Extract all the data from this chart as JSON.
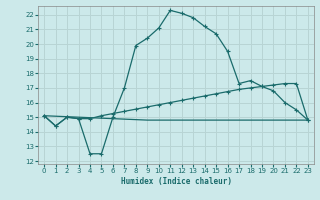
{
  "xlabel": "Humidex (Indice chaleur)",
  "xlim": [
    -0.5,
    23.5
  ],
  "ylim": [
    11.8,
    22.6
  ],
  "xticks": [
    0,
    1,
    2,
    3,
    4,
    5,
    6,
    7,
    8,
    9,
    10,
    11,
    12,
    13,
    14,
    15,
    16,
    17,
    18,
    19,
    20,
    21,
    22,
    23
  ],
  "yticks": [
    12,
    13,
    14,
    15,
    16,
    17,
    18,
    19,
    20,
    21,
    22
  ],
  "bg_color": "#cce9ea",
  "grid_color": "#b8d4d4",
  "line_color": "#1a6b6b",
  "line1_x": [
    0,
    1,
    2,
    3,
    4,
    5,
    6,
    7,
    8,
    9,
    10,
    11,
    12,
    13,
    14,
    15,
    16,
    17,
    18,
    19,
    20,
    21,
    22,
    23
  ],
  "line1_y": [
    15.1,
    14.4,
    15.0,
    14.9,
    12.5,
    12.5,
    15.0,
    17.0,
    19.9,
    20.4,
    21.1,
    22.3,
    22.1,
    21.8,
    21.2,
    20.7,
    19.5,
    17.3,
    17.5,
    17.1,
    16.8,
    16.0,
    15.5,
    14.8
  ],
  "line2_x": [
    0,
    1,
    2,
    3,
    4,
    5,
    6,
    7,
    8,
    9,
    10,
    11,
    12,
    13,
    14,
    15,
    16,
    17,
    18,
    19,
    20,
    21,
    22,
    23
  ],
  "line2_y": [
    15.1,
    14.4,
    15.0,
    14.9,
    14.9,
    15.1,
    15.25,
    15.4,
    15.55,
    15.7,
    15.85,
    16.0,
    16.15,
    16.3,
    16.45,
    16.6,
    16.75,
    16.9,
    17.0,
    17.1,
    17.2,
    17.3,
    17.3,
    14.8
  ],
  "line3_x": [
    0,
    9,
    23
  ],
  "line3_y": [
    15.1,
    14.8,
    14.8
  ]
}
